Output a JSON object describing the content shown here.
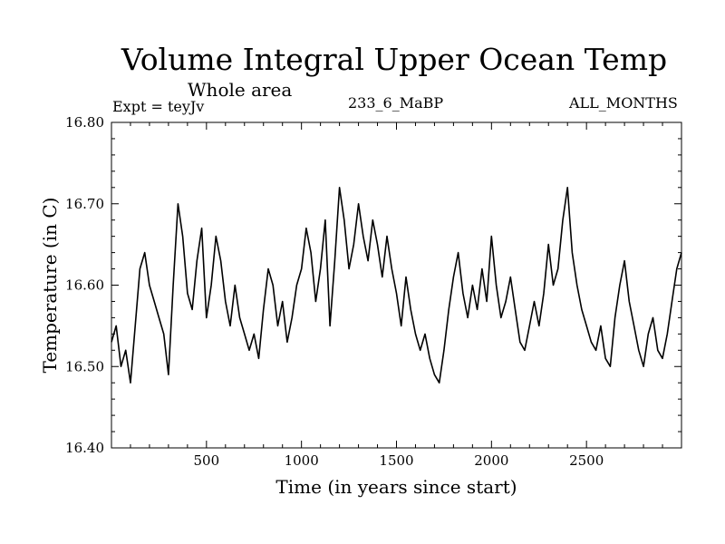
{
  "header": {
    "title": "Volume Integral Upper Ocean Temp",
    "subtitle": "Whole area",
    "expt": "Expt = teyJv",
    "center_label": "233_6_MaBP",
    "right_label": "ALL_MONTHS"
  },
  "chart_data": {
    "type": "line",
    "title": "Volume Integral Upper Ocean Temp",
    "xlabel": "Time (in years since start)",
    "ylabel": "Temperature (in C)",
    "xlim": [
      0,
      3000
    ],
    "ylim": [
      16.4,
      16.8
    ],
    "xticks": [
      500,
      1000,
      1500,
      2000,
      2500
    ],
    "xtick_labels": [
      "500",
      "1000",
      "1500",
      "2000",
      "2500"
    ],
    "yticks": [
      16.4,
      16.5,
      16.6,
      16.7,
      16.8
    ],
    "ytick_labels": [
      "16.40",
      "16.50",
      "16.60",
      "16.70",
      "16.80"
    ],
    "grid": false,
    "series": [
      {
        "name": "Volume Integral Upper Ocean Temp",
        "color": "#000000",
        "x": [
          0,
          25,
          50,
          75,
          100,
          125,
          150,
          175,
          200,
          225,
          250,
          275,
          300,
          325,
          350,
          375,
          400,
          425,
          450,
          475,
          500,
          525,
          550,
          575,
          600,
          625,
          650,
          675,
          700,
          725,
          750,
          775,
          800,
          825,
          850,
          875,
          900,
          925,
          950,
          975,
          1000,
          1025,
          1050,
          1075,
          1100,
          1125,
          1150,
          1175,
          1200,
          1225,
          1250,
          1275,
          1300,
          1325,
          1350,
          1375,
          1400,
          1425,
          1450,
          1475,
          1500,
          1525,
          1550,
          1575,
          1600,
          1625,
          1650,
          1675,
          1700,
          1725,
          1750,
          1775,
          1800,
          1825,
          1850,
          1875,
          1900,
          1925,
          1950,
          1975,
          2000,
          2025,
          2050,
          2075,
          2100,
          2125,
          2150,
          2175,
          2200,
          2225,
          2250,
          2275,
          2300,
          2325,
          2350,
          2375,
          2400,
          2425,
          2450,
          2475,
          2500,
          2525,
          2550,
          2575,
          2600,
          2625,
          2650,
          2675,
          2700,
          2725,
          2750,
          2775,
          2800,
          2825,
          2850,
          2875,
          2900,
          2925,
          2950,
          2975,
          3000
        ],
        "values": [
          16.53,
          16.55,
          16.5,
          16.52,
          16.48,
          16.55,
          16.62,
          16.64,
          16.6,
          16.58,
          16.56,
          16.54,
          16.49,
          16.6,
          16.7,
          16.66,
          16.59,
          16.57,
          16.63,
          16.67,
          16.56,
          16.6,
          16.66,
          16.63,
          16.58,
          16.55,
          16.6,
          16.56,
          16.54,
          16.52,
          16.54,
          16.51,
          16.57,
          16.62,
          16.6,
          16.55,
          16.58,
          16.53,
          16.56,
          16.6,
          16.62,
          16.67,
          16.64,
          16.58,
          16.62,
          16.68,
          16.55,
          16.63,
          16.72,
          16.68,
          16.62,
          16.65,
          16.7,
          16.66,
          16.63,
          16.68,
          16.65,
          16.61,
          16.66,
          16.62,
          16.59,
          16.55,
          16.61,
          16.57,
          16.54,
          16.52,
          16.54,
          16.51,
          16.49,
          16.48,
          16.52,
          16.57,
          16.61,
          16.64,
          16.59,
          16.56,
          16.6,
          16.57,
          16.62,
          16.58,
          16.66,
          16.6,
          16.56,
          16.58,
          16.61,
          16.57,
          16.53,
          16.52,
          16.55,
          16.58,
          16.55,
          16.59,
          16.65,
          16.6,
          16.62,
          16.68,
          16.72,
          16.64,
          16.6,
          16.57,
          16.55,
          16.53,
          16.52,
          16.55,
          16.51,
          16.5,
          16.56,
          16.6,
          16.63,
          16.58,
          16.55,
          16.52,
          16.5,
          16.54,
          16.56,
          16.52,
          16.51,
          16.54,
          16.58,
          16.62,
          16.64
        ]
      }
    ]
  }
}
